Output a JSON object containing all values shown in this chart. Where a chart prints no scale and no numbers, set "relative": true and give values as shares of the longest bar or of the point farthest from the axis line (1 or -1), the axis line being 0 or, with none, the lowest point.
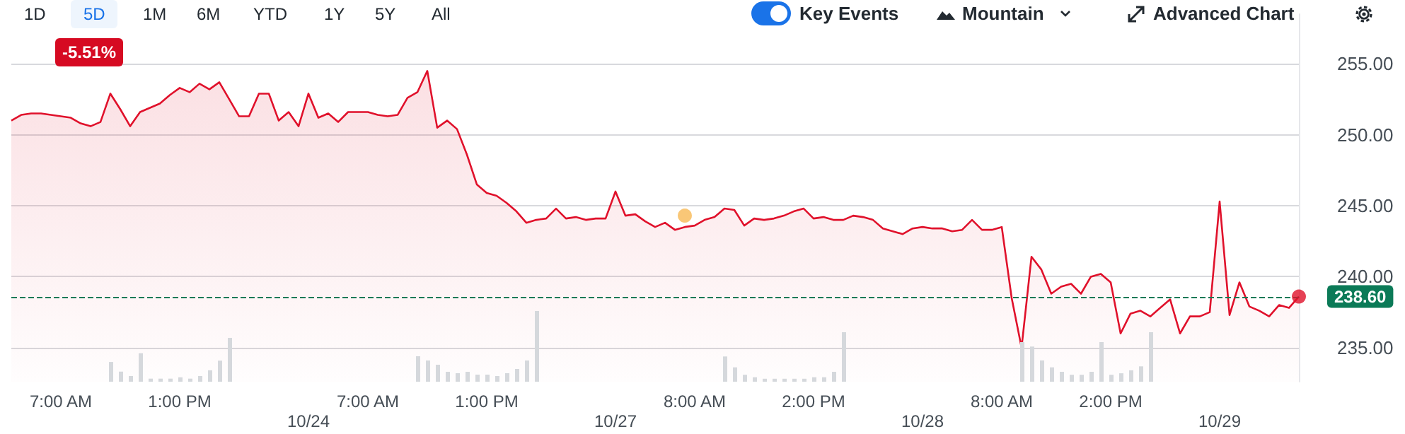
{
  "chart_data": [
    {
      "type": "area",
      "categories": [
        null,
        null,
        null,
        null,
        null,
        "7:00 AM",
        null,
        null,
        null,
        null,
        null,
        null,
        null,
        null,
        null,
        null,
        null,
        "1:00 PM",
        null,
        null,
        null,
        null,
        null,
        null,
        null,
        null,
        null,
        null,
        null,
        null,
        null,
        null,
        null,
        null,
        null,
        null,
        "7:00 AM",
        null,
        null,
        null,
        null,
        null,
        null,
        null,
        null,
        null,
        null,
        null,
        "1:00 PM",
        null,
        null,
        null,
        null,
        null,
        null,
        null,
        null,
        null,
        null,
        null,
        null,
        null,
        null,
        null,
        null,
        null,
        null,
        null,
        null,
        "8:00 AM",
        null,
        null,
        null,
        null,
        null,
        null,
        null,
        null,
        null,
        null,
        null,
        "2:00 PM",
        null,
        null,
        null,
        null,
        null,
        null,
        null,
        null,
        null,
        null,
        null,
        null,
        null,
        null,
        null,
        null,
        null,
        null,
        "8:00 AM",
        null,
        null,
        null,
        null,
        null,
        null,
        null,
        null,
        null,
        null,
        "2:00 PM",
        null,
        null,
        null,
        null,
        null,
        null,
        null,
        null,
        null,
        null,
        null,
        null,
        null,
        null,
        null,
        null,
        null,
        null,
        null
      ],
      "series": [
        {
          "color": "#e0112b",
          "values": [
            251.0,
            251.4,
            251.5,
            251.5,
            251.4,
            251.3,
            251.2,
            250.8,
            250.6,
            250.9,
            252.9,
            251.8,
            250.6,
            251.6,
            251.9,
            252.2,
            252.8,
            253.3,
            253.0,
            253.6,
            253.2,
            253.7,
            252.5,
            251.3,
            251.3,
            252.9,
            252.9,
            251.0,
            251.6,
            250.6,
            252.9,
            251.2,
            251.5,
            250.9,
            251.6,
            251.6,
            251.6,
            251.4,
            251.3,
            251.4,
            252.6,
            253.0,
            254.5,
            250.5,
            251.0,
            250.4,
            248.6,
            246.5,
            245.9,
            245.7,
            245.2,
            244.6,
            243.8,
            244.0,
            244.1,
            244.8,
            244.1,
            244.2,
            244.0,
            244.1,
            244.1,
            246.0,
            244.3,
            244.4,
            243.9,
            243.5,
            243.8,
            243.3,
            243.5,
            243.6,
            244.0,
            244.2,
            244.8,
            244.7,
            243.6,
            244.1,
            244.0,
            244.1,
            244.3,
            244.6,
            244.8,
            244.1,
            244.2,
            244.0,
            244.0,
            244.3,
            244.2,
            244.0,
            243.4,
            243.2,
            243.0,
            243.4,
            243.5,
            243.4,
            243.4,
            243.2,
            243.3,
            244.0,
            243.3,
            243.3,
            243.5,
            238.5,
            235.0,
            241.4,
            240.5,
            238.8,
            239.3,
            239.5,
            238.8,
            240.0,
            240.2,
            239.6,
            236.0,
            237.4,
            237.6,
            237.2,
            237.8,
            238.4,
            236.0,
            237.2,
            237.2,
            237.5,
            245.3,
            237.3,
            239.6,
            237.9,
            237.6,
            237.2,
            238.0,
            237.8,
            238.6
          ]
        },
        {
          "type": "scatter",
          "color": "#f7b955",
          "values": [
            null,
            null,
            null,
            null,
            null,
            null,
            null,
            null,
            null,
            null,
            null,
            null,
            null,
            null,
            null,
            null,
            null,
            null,
            null,
            null,
            null,
            null,
            null,
            null,
            null,
            null,
            null,
            null,
            null,
            null,
            null,
            null,
            null,
            null,
            null,
            null,
            null,
            null,
            null,
            null,
            null,
            null,
            null,
            null,
            null,
            null,
            null,
            null,
            null,
            null,
            null,
            null,
            null,
            null,
            null,
            null,
            null,
            null,
            null,
            null,
            null,
            null,
            null,
            null,
            null,
            null,
            null,
            null,
            244.3,
            null,
            null,
            null,
            null,
            null,
            null,
            null,
            null,
            null,
            null,
            null,
            null,
            null,
            null,
            null,
            null,
            null,
            null,
            null,
            null,
            null,
            null,
            null,
            null,
            null,
            null,
            null,
            null,
            null,
            null,
            null,
            null,
            null,
            null,
            null,
            null,
            null,
            null,
            null,
            null,
            null,
            null,
            null,
            null,
            null,
            null,
            null,
            null,
            null,
            null,
            null,
            null,
            null,
            null,
            null,
            null,
            null,
            null,
            null,
            null,
            null,
            null
          ]
        },
        {
          "type": "scatter",
          "color": "#e0112b",
          "values": [
            null,
            null,
            null,
            null,
            null,
            null,
            null,
            null,
            null,
            null,
            null,
            null,
            null,
            null,
            null,
            null,
            null,
            null,
            null,
            null,
            null,
            null,
            null,
            null,
            null,
            null,
            null,
            null,
            null,
            null,
            null,
            null,
            null,
            null,
            null,
            null,
            null,
            null,
            null,
            null,
            null,
            null,
            null,
            null,
            null,
            null,
            null,
            null,
            null,
            null,
            null,
            null,
            null,
            null,
            null,
            null,
            null,
            null,
            null,
            null,
            null,
            null,
            null,
            null,
            null,
            null,
            null,
            null,
            null,
            null,
            null,
            null,
            null,
            null,
            null,
            null,
            null,
            null,
            null,
            null,
            null,
            null,
            null,
            null,
            null,
            null,
            null,
            null,
            null,
            null,
            null,
            null,
            null,
            null,
            null,
            null,
            null,
            null,
            null,
            null,
            null,
            null,
            null,
            null,
            null,
            null,
            null,
            null,
            null,
            null,
            null,
            null,
            null,
            null,
            null,
            null,
            null,
            null,
            null,
            null,
            null,
            null,
            null,
            null,
            null,
            null,
            null,
            null,
            null,
            null,
            238.6
          ]
        }
      ],
      "ylim": [
        232.6,
        258.5
      ],
      "yticks": [
        {
          "value": 235,
          "label": "235.00"
        },
        {
          "value": 240,
          "label": "240.00"
        },
        {
          "value": 245,
          "label": "245.00"
        },
        {
          "value": 250,
          "label": "250.00"
        },
        {
          "value": 255,
          "label": "255.00"
        }
      ],
      "grid": "y",
      "ref_lines": [
        {
          "axis": "y",
          "value": 238.6,
          "label": "238.60",
          "color": "#0b7a57",
          "line_style": "dashed"
        }
      ],
      "annotations": [
        "1D",
        "5D",
        "1M",
        "6M",
        "YTD",
        "1Y",
        "5Y",
        "All",
        "Key Events",
        "Mountain",
        "Advanced Chart",
        "-5.51%",
        "10/24",
        "10/27",
        "10/28",
        "10/29"
      ]
    },
    {
      "type": "bar",
      "relative": true,
      "color": "#d5d8dc",
      "categories": [
        null,
        null,
        null,
        null,
        null,
        null,
        null,
        null,
        null,
        null,
        null,
        null,
        null
      ],
      "values": [
        0.45,
        0.23,
        0.13,
        0.65,
        0.07,
        0.07,
        0.07,
        0.1,
        0.07,
        0.13,
        0.26,
        0.48,
        1
      ]
    },
    {
      "type": "bar",
      "relative": true,
      "color": "#d5d8dc",
      "categories": [
        null,
        null,
        null,
        null,
        null,
        null,
        null,
        null,
        null,
        null,
        null,
        null,
        null
      ],
      "values": [
        0.36,
        0.3,
        0.24,
        0.14,
        0.12,
        0.14,
        0.1,
        0.1,
        0.08,
        0.12,
        0.18,
        0.3,
        1
      ]
    },
    {
      "type": "bar",
      "relative": true,
      "color": "#d5d8dc",
      "categories": [
        null,
        null,
        null,
        null,
        null,
        null,
        null,
        null,
        null,
        null,
        null,
        null,
        null
      ],
      "values": [
        0.51,
        0.29,
        0.14,
        0.09,
        0.06,
        0.06,
        0.06,
        0.06,
        0.06,
        0.09,
        0.09,
        0.2,
        1
      ]
    },
    {
      "type": "bar",
      "relative": true,
      "color": "#d5d8dc",
      "categories": [
        null,
        null,
        null,
        null,
        null,
        null,
        null,
        null,
        null,
        null,
        null,
        null,
        null,
        null
      ],
      "values": [
        0.8,
        0.71,
        0.43,
        0.29,
        0.2,
        0.14,
        0.14,
        0.2,
        0.8,
        0.14,
        0.17,
        0.23,
        0.31,
        1
      ]
    }
  ]
}
